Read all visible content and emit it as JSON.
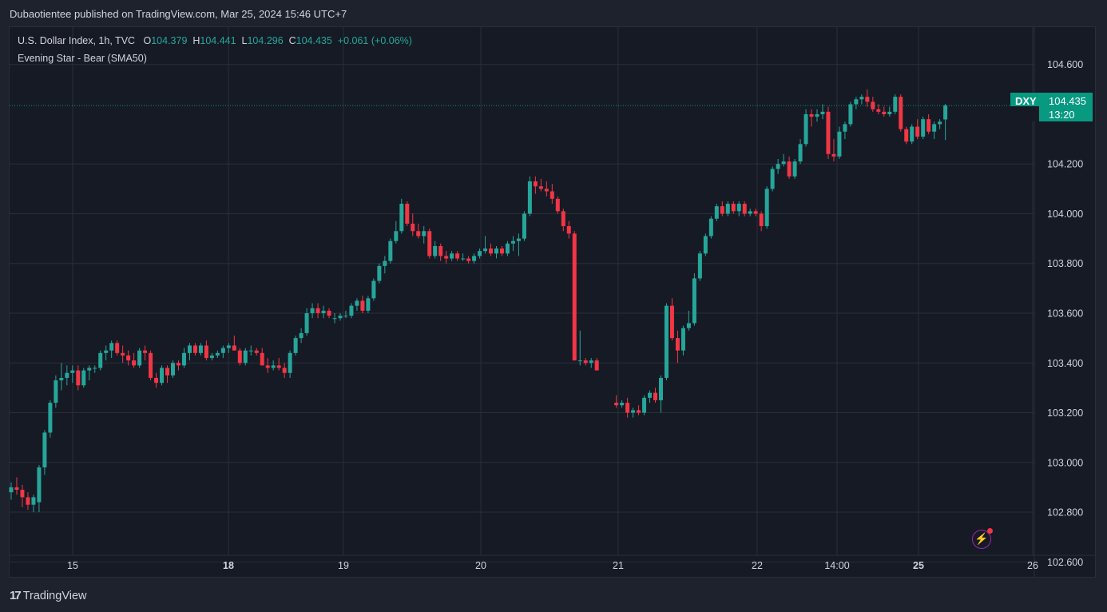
{
  "header": {
    "published": "Dubaotientee published on TradingView.com, Mar 25, 2024 15:46 UTC+7"
  },
  "legend": {
    "title": "U.S. Dollar Index, 1h, TVC",
    "o_label": "O",
    "o": "104.379",
    "h_label": "H",
    "h": "104.441",
    "l_label": "L",
    "l": "104.296",
    "c_label": "C",
    "c": "104.435",
    "change": "+0.061 (+0.06%)",
    "indicator": "Evening Star - Bear (SMA50)"
  },
  "price_tag": {
    "symbol": "DXY",
    "price": "104.435",
    "countdown": "13:20"
  },
  "footer": {
    "brand": "TradingView"
  },
  "colors": {
    "up": "#26a69a",
    "down": "#f23645",
    "grid": "#2a2e39",
    "background": "#161a25",
    "last_price": "#089981"
  },
  "chart_data": {
    "type": "candlestick",
    "y_ticks": [
      "104.600",
      "104.200",
      "104.000",
      "103.800",
      "103.600",
      "103.400",
      "103.200",
      "103.000",
      "102.800",
      "102.600"
    ],
    "y_tick_values": [
      104.6,
      104.2,
      104.0,
      103.8,
      103.6,
      103.4,
      103.2,
      103.0,
      102.8,
      102.6
    ],
    "ylim": [
      102.54,
      104.75
    ],
    "x_ticks": [
      {
        "label": "15",
        "bold": false
      },
      {
        "label": "18",
        "bold": true
      },
      {
        "label": "19",
        "bold": false
      },
      {
        "label": "20",
        "bold": false
      },
      {
        "label": "21",
        "bold": false
      },
      {
        "label": "22",
        "bold": false
      },
      {
        "label": "14:00",
        "bold": false
      },
      {
        "label": "25",
        "bold": true
      },
      {
        "label": "26",
        "bold": false
      }
    ],
    "last_price": 104.435,
    "candles": [
      [
        102.88,
        102.92,
        102.85,
        102.9
      ],
      [
        102.9,
        102.94,
        102.87,
        102.89
      ],
      [
        102.89,
        102.91,
        102.82,
        102.86
      ],
      [
        102.86,
        102.88,
        102.81,
        102.83
      ],
      [
        102.83,
        102.87,
        102.8,
        102.86
      ],
      [
        102.84,
        102.99,
        102.8,
        102.98
      ],
      [
        102.98,
        103.13,
        102.95,
        103.12
      ],
      [
        103.12,
        103.25,
        103.1,
        103.24
      ],
      [
        103.24,
        103.35,
        103.22,
        103.33
      ],
      [
        103.33,
        103.4,
        103.29,
        103.34
      ],
      [
        103.34,
        103.39,
        103.31,
        103.36
      ],
      [
        103.36,
        103.39,
        103.32,
        103.37
      ],
      [
        103.37,
        103.39,
        103.29,
        103.31
      ],
      [
        103.31,
        103.38,
        103.3,
        103.37
      ],
      [
        103.37,
        103.39,
        103.33,
        103.38
      ],
      [
        103.38,
        103.39,
        103.36,
        103.38
      ],
      [
        103.38,
        103.45,
        103.37,
        103.44
      ],
      [
        103.44,
        103.47,
        103.41,
        103.45
      ],
      [
        103.45,
        103.49,
        103.42,
        103.48
      ],
      [
        103.48,
        103.49,
        103.43,
        103.44
      ],
      [
        103.44,
        103.47,
        103.4,
        103.43
      ],
      [
        103.43,
        103.45,
        103.39,
        103.41
      ],
      [
        103.41,
        103.44,
        103.38,
        103.39
      ],
      [
        103.39,
        103.46,
        103.38,
        103.45
      ],
      [
        103.45,
        103.47,
        103.41,
        103.44
      ],
      [
        103.44,
        103.45,
        103.33,
        103.34
      ],
      [
        103.34,
        103.36,
        103.3,
        103.32
      ],
      [
        103.32,
        103.39,
        103.31,
        103.38
      ],
      [
        103.38,
        103.39,
        103.32,
        103.35
      ],
      [
        103.35,
        103.41,
        103.34,
        103.4
      ],
      [
        103.4,
        103.41,
        103.37,
        103.39
      ],
      [
        103.39,
        103.46,
        103.38,
        103.44
      ],
      [
        103.44,
        103.48,
        103.41,
        103.47
      ],
      [
        103.47,
        103.48,
        103.43,
        103.44
      ],
      [
        103.44,
        103.48,
        103.43,
        103.47
      ],
      [
        103.47,
        103.49,
        103.41,
        103.42
      ],
      [
        103.42,
        103.44,
        103.41,
        103.43
      ],
      [
        103.43,
        103.45,
        103.42,
        103.44
      ],
      [
        103.44,
        103.47,
        103.42,
        103.46
      ],
      [
        103.46,
        103.48,
        103.44,
        103.47
      ],
      [
        103.47,
        103.51,
        103.45,
        103.45
      ],
      [
        103.45,
        103.46,
        103.39,
        103.4
      ],
      [
        103.4,
        103.46,
        103.39,
        103.45
      ],
      [
        103.45,
        103.47,
        103.43,
        103.45
      ],
      [
        103.45,
        103.46,
        103.43,
        103.44
      ],
      [
        103.44,
        103.46,
        103.39,
        103.39
      ],
      [
        103.39,
        103.42,
        103.36,
        103.38
      ],
      [
        103.38,
        103.41,
        103.37,
        103.39
      ],
      [
        103.39,
        103.42,
        103.37,
        103.38
      ],
      [
        103.38,
        103.4,
        103.34,
        103.36
      ],
      [
        103.36,
        103.45,
        103.34,
        103.44
      ],
      [
        103.44,
        103.51,
        103.43,
        103.5
      ],
      [
        103.5,
        103.54,
        103.48,
        103.52
      ],
      [
        103.52,
        103.62,
        103.51,
        103.6
      ],
      [
        103.6,
        103.64,
        103.58,
        103.62
      ],
      [
        103.62,
        103.64,
        103.58,
        103.6
      ],
      [
        103.6,
        103.63,
        103.58,
        103.61
      ],
      [
        103.61,
        103.62,
        103.58,
        103.59
      ],
      [
        103.58,
        103.6,
        103.56,
        103.58
      ],
      [
        103.58,
        103.6,
        103.57,
        103.59
      ],
      [
        103.59,
        103.61,
        103.58,
        103.59
      ],
      [
        103.59,
        103.64,
        103.58,
        103.63
      ],
      [
        103.63,
        103.66,
        103.61,
        103.65
      ],
      [
        103.65,
        103.67,
        103.6,
        103.61
      ],
      [
        103.61,
        103.67,
        103.6,
        103.66
      ],
      [
        103.66,
        103.74,
        103.65,
        103.73
      ],
      [
        103.73,
        103.8,
        103.72,
        103.79
      ],
      [
        103.79,
        103.83,
        103.76,
        103.81
      ],
      [
        103.81,
        103.9,
        103.8,
        103.89
      ],
      [
        103.89,
        103.97,
        103.88,
        103.93
      ],
      [
        103.93,
        104.06,
        103.92,
        104.04
      ],
      [
        104.04,
        104.05,
        103.95,
        103.96
      ],
      [
        103.96,
        104.0,
        103.91,
        103.93
      ],
      [
        103.93,
        103.96,
        103.9,
        103.91
      ],
      [
        103.91,
        103.95,
        103.88,
        103.93
      ],
      [
        103.93,
        103.94,
        103.82,
        103.83
      ],
      [
        103.83,
        103.89,
        103.82,
        103.87
      ],
      [
        103.87,
        103.88,
        103.81,
        103.83
      ],
      [
        103.83,
        103.85,
        103.8,
        103.82
      ],
      [
        103.82,
        103.85,
        103.81,
        103.84
      ],
      [
        103.84,
        103.85,
        103.81,
        103.82
      ],
      [
        103.82,
        103.84,
        103.81,
        103.82
      ],
      [
        103.82,
        103.83,
        103.8,
        103.81
      ],
      [
        103.81,
        103.84,
        103.8,
        103.83
      ],
      [
        103.83,
        103.86,
        103.82,
        103.85
      ],
      [
        103.85,
        103.91,
        103.84,
        103.86
      ],
      [
        103.86,
        103.88,
        103.83,
        103.84
      ],
      [
        103.84,
        103.87,
        103.82,
        103.86
      ],
      [
        103.86,
        103.87,
        103.83,
        103.84
      ],
      [
        103.84,
        103.89,
        103.83,
        103.88
      ],
      [
        103.88,
        103.91,
        103.85,
        103.89
      ],
      [
        103.89,
        103.92,
        103.83,
        103.9
      ],
      [
        103.9,
        104.01,
        103.89,
        104.0
      ],
      [
        104.0,
        104.15,
        103.99,
        104.13
      ],
      [
        104.13,
        104.15,
        104.08,
        104.11
      ],
      [
        104.11,
        104.14,
        104.09,
        104.1
      ],
      [
        104.1,
        104.13,
        104.07,
        104.09
      ],
      [
        104.09,
        104.12,
        104.04,
        104.06
      ],
      [
        104.06,
        104.07,
        104.0,
        104.01
      ],
      [
        104.01,
        104.02,
        103.93,
        103.95
      ],
      [
        103.95,
        103.97,
        103.9,
        103.92
      ],
      [
        103.92,
        103.93,
        103.41,
        103.41
      ],
      [
        103.41,
        103.53,
        103.39,
        103.41
      ],
      [
        103.41,
        103.42,
        103.39,
        103.4
      ],
      [
        103.4,
        103.42,
        103.38,
        103.41
      ],
      [
        103.41,
        103.42,
        103.37,
        103.37
      ],
      [
        103.24,
        103.27,
        103.22,
        103.23
      ],
      [
        103.23,
        103.25,
        103.22,
        103.24
      ],
      [
        103.24,
        103.26,
        103.18,
        103.2
      ],
      [
        103.2,
        103.22,
        103.18,
        103.21
      ],
      [
        103.21,
        103.23,
        103.19,
        103.2
      ],
      [
        103.2,
        103.27,
        103.19,
        103.26
      ],
      [
        103.26,
        103.29,
        103.24,
        103.28
      ],
      [
        103.28,
        103.3,
        103.24,
        103.25
      ],
      [
        103.25,
        103.35,
        103.2,
        103.34
      ],
      [
        103.34,
        103.64,
        103.33,
        103.63
      ],
      [
        103.63,
        103.66,
        103.49,
        103.5
      ],
      [
        103.5,
        103.53,
        103.4,
        103.45
      ],
      [
        103.45,
        103.55,
        103.43,
        103.54
      ],
      [
        103.54,
        103.61,
        103.53,
        103.56
      ],
      [
        103.56,
        103.76,
        103.55,
        103.74
      ],
      [
        103.74,
        103.85,
        103.73,
        103.84
      ],
      [
        103.84,
        103.92,
        103.83,
        103.91
      ],
      [
        103.91,
        103.99,
        103.9,
        103.98
      ],
      [
        103.98,
        104.04,
        103.97,
        104.03
      ],
      [
        104.03,
        104.05,
        103.99,
        104.0
      ],
      [
        104.0,
        104.05,
        103.99,
        104.04
      ],
      [
        104.04,
        104.05,
        104.0,
        104.01
      ],
      [
        104.01,
        104.05,
        103.99,
        104.04
      ],
      [
        104.04,
        104.05,
        103.99,
        104.0
      ],
      [
        104.0,
        104.02,
        103.99,
        104.01
      ],
      [
        104.01,
        104.02,
        103.99,
        104.0
      ],
      [
        104.0,
        104.01,
        103.93,
        103.95
      ],
      [
        103.95,
        104.11,
        103.94,
        104.1
      ],
      [
        104.1,
        104.19,
        104.09,
        104.18
      ],
      [
        104.18,
        104.22,
        104.16,
        104.2
      ],
      [
        104.2,
        104.24,
        104.19,
        104.21
      ],
      [
        104.21,
        104.23,
        104.14,
        104.15
      ],
      [
        104.15,
        104.22,
        104.14,
        104.21
      ],
      [
        104.21,
        104.3,
        104.2,
        104.28
      ],
      [
        104.28,
        104.42,
        104.27,
        104.4
      ],
      [
        104.4,
        104.42,
        104.35,
        104.39
      ],
      [
        104.39,
        104.42,
        104.37,
        104.4
      ],
      [
        104.4,
        104.44,
        104.38,
        104.41
      ],
      [
        104.41,
        104.43,
        104.22,
        104.24
      ],
      [
        104.24,
        104.3,
        104.21,
        104.23
      ],
      [
        104.23,
        104.35,
        104.22,
        104.33
      ],
      [
        104.33,
        104.37,
        104.3,
        104.36
      ],
      [
        104.36,
        104.45,
        104.35,
        104.44
      ],
      [
        104.44,
        104.47,
        104.42,
        104.46
      ],
      [
        104.46,
        104.48,
        104.44,
        104.47
      ],
      [
        104.47,
        104.5,
        104.43,
        104.45
      ],
      [
        104.45,
        104.47,
        104.41,
        104.42
      ],
      [
        104.42,
        104.44,
        104.4,
        104.41
      ],
      [
        104.41,
        104.43,
        104.39,
        104.4
      ],
      [
        104.4,
        104.43,
        104.39,
        104.41
      ],
      [
        104.41,
        104.48,
        104.4,
        104.47
      ],
      [
        104.47,
        104.48,
        104.33,
        104.34
      ],
      [
        104.34,
        104.35,
        104.28,
        104.29
      ],
      [
        104.29,
        104.36,
        104.28,
        104.35
      ],
      [
        104.35,
        104.38,
        104.3,
        104.31
      ],
      [
        104.31,
        104.39,
        104.3,
        104.38
      ],
      [
        104.38,
        104.4,
        104.32,
        104.33
      ],
      [
        104.33,
        104.37,
        104.3,
        104.36
      ],
      [
        104.36,
        104.38,
        104.34,
        104.37
      ],
      [
        104.379,
        104.441,
        104.296,
        104.435
      ]
    ]
  }
}
